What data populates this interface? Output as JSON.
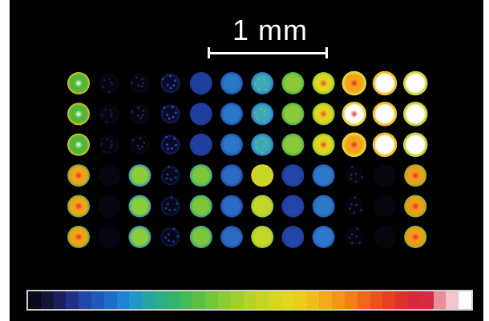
{
  "scale": {
    "label": "1 mm"
  },
  "colors": {
    "background": "#000000",
    "scale_bar": "#ffffff",
    "colorbar_frame": "#cfcfcf"
  },
  "colormap": [
    "#0a0a18",
    "#14143a",
    "#1c1f5e",
    "#23308a",
    "#2245a8",
    "#2058bb",
    "#1f6dc9",
    "#1d83d2",
    "#1f98c8",
    "#25a6a4",
    "#2cae86",
    "#35b46c",
    "#45ba55",
    "#5bc046",
    "#72c63a",
    "#8acb33",
    "#a0cf2d",
    "#b5d229",
    "#c6d525",
    "#d6d621",
    "#e4d51d",
    "#eccc1b",
    "#f0bd1a",
    "#f2aa19",
    "#f39518",
    "#f27f18",
    "#ef6819",
    "#eb531c",
    "#e63f22",
    "#e0302c",
    "#d82938",
    "#d62a45",
    "#e8909a",
    "#f2c6cb",
    "#ffffff"
  ],
  "wells": {
    "rows": 6,
    "cols": 12,
    "grid": [
      [
        {
          "c": "#4fb83a",
          "r": "#f0c020",
          "h": "#ffffff"
        },
        {
          "c": "#050510",
          "r": "#0b0b1c",
          "speck": "#1a1a4a",
          "faint": true
        },
        {
          "c": "#050510",
          "r": "#0b0b1c",
          "speck": "#23236a",
          "faint": true
        },
        {
          "c": "#0d0f3a",
          "r": "#1f2a7a",
          "speck": "#2f4cb0",
          "faint": true
        },
        {
          "c": "#1e3fa0",
          "r": "#213a96"
        },
        {
          "c": "#2a77c8",
          "r": "#1f4fb0"
        },
        {
          "c": "#3aa6c0",
          "r": "#2a78c9",
          "speck": "#6ac048"
        },
        {
          "c": "#8cc93a",
          "r": "#4cb14a"
        },
        {
          "c": "#e0d520",
          "r": "#7ac638",
          "h": "#e84a20"
        },
        {
          "c": "#f4a41a",
          "r": "#e7d23a",
          "h": "#e02a28",
          "hot": true
        },
        {
          "c": "#ffffff",
          "r": "#f2c020",
          "h": "#ffffff",
          "hot": true
        },
        {
          "c": "#ffffff",
          "r": "#cdd23a",
          "h": "#ffffff",
          "hot": true
        }
      ],
      [
        {
          "c": "#4fb83a",
          "r": "#f0c020",
          "h": "#ffffff"
        },
        {
          "c": "#050510",
          "r": "#0b0b1c",
          "speck": "#1a1a4a",
          "faint": true
        },
        {
          "c": "#050510",
          "r": "#0b0b1c",
          "speck": "#23236a",
          "faint": true
        },
        {
          "c": "#0d0f3a",
          "r": "#1f2a7a",
          "speck": "#2f4cb0",
          "faint": true
        },
        {
          "c": "#1e3fa0",
          "r": "#213a96"
        },
        {
          "c": "#2a77c8",
          "r": "#1f4fb0"
        },
        {
          "c": "#3aa6c0",
          "r": "#2a78c9",
          "speck": "#6ac048"
        },
        {
          "c": "#8cc93a",
          "r": "#4cb14a"
        },
        {
          "c": "#e0d520",
          "r": "#7ac638",
          "h": "#e84a20"
        },
        {
          "c": "#ffffff",
          "r": "#e7d23a",
          "h": "#e02a28",
          "hot": true
        },
        {
          "c": "#ffffff",
          "r": "#f2c020",
          "h": "#ffffff",
          "hot": true
        },
        {
          "c": "#ffffff",
          "r": "#cdd23a",
          "h": "#ffffff",
          "hot": true
        }
      ],
      [
        {
          "c": "#4fb83a",
          "r": "#f0c020",
          "h": "#ffffff"
        },
        {
          "c": "#050510",
          "r": "#0b0b1c",
          "speck": "#1a1a4a",
          "faint": true
        },
        {
          "c": "#050510",
          "r": "#0b0b1c",
          "speck": "#23236a",
          "faint": true
        },
        {
          "c": "#0d0f3a",
          "r": "#1f2a7a",
          "speck": "#2f4cb0",
          "faint": true
        },
        {
          "c": "#1e3fa0",
          "r": "#213a96"
        },
        {
          "c": "#2a77c8",
          "r": "#1f4fb0"
        },
        {
          "c": "#3aa6c0",
          "r": "#2a78c9",
          "speck": "#6ac048"
        },
        {
          "c": "#8cc93a",
          "r": "#4cb14a"
        },
        {
          "c": "#e0d520",
          "r": "#7ac638",
          "h": "#e84a20"
        },
        {
          "c": "#f4a41a",
          "r": "#e7d23a",
          "h": "#e02a28",
          "hot": true
        },
        {
          "c": "#ffffff",
          "r": "#f2c020",
          "h": "#ffffff",
          "hot": true
        },
        {
          "c": "#ffffff",
          "r": "#cdd23a",
          "h": "#ffffff",
          "hot": true
        }
      ],
      [
        {
          "c": "#f2a21a",
          "r": "#4cb14a",
          "h": "#e0302a"
        },
        {
          "c": "#050510",
          "r": "#050510"
        },
        {
          "c": "#8ccc3a",
          "r": "#2f8fc4"
        },
        {
          "c": "#0b0b22",
          "r": "#1a1f5e",
          "speck": "#2a3a9a",
          "faint": true
        },
        {
          "c": "#7cc63a",
          "r": "#3aa38e"
        },
        {
          "c": "#2a6cc4",
          "r": "#1f4aa8"
        },
        {
          "c": "#c6d52a",
          "r": "#e8cc24",
          "h": "#c6d52a"
        },
        {
          "c": "#2345a8",
          "r": "#1f3c9a"
        },
        {
          "c": "#2d78c9",
          "r": "#2759b8"
        },
        {
          "c": "#050510",
          "r": "#050510",
          "speck": "#20256a",
          "faint": true
        },
        {
          "c": "#050510",
          "r": "#050510"
        },
        {
          "c": "#f29a1a",
          "r": "#6cc23e",
          "h": "#e0302a"
        }
      ],
      [
        {
          "c": "#f2a21a",
          "r": "#4cb14a",
          "h": "#e0302a"
        },
        {
          "c": "#050510",
          "r": "#050510"
        },
        {
          "c": "#8ccc3a",
          "r": "#2f8fc4"
        },
        {
          "c": "#0b0b22",
          "r": "#1a1f5e",
          "speck": "#2a3a9a",
          "faint": true
        },
        {
          "c": "#7cc63a",
          "r": "#3aa38e"
        },
        {
          "c": "#2a6cc4",
          "r": "#1f4aa8"
        },
        {
          "c": "#c6d52a",
          "r": "#8cc93a",
          "h": "#c6d52a"
        },
        {
          "c": "#2345a8",
          "r": "#1f3c9a"
        },
        {
          "c": "#2d78c9",
          "r": "#2759b8"
        },
        {
          "c": "#050510",
          "r": "#050510",
          "speck": "#20256a",
          "faint": true
        },
        {
          "c": "#050510",
          "r": "#050510"
        },
        {
          "c": "#f29a1a",
          "r": "#6cc23e",
          "h": "#e0302a"
        }
      ],
      [
        {
          "c": "#f2a21a",
          "r": "#4cb14a",
          "h": "#e0302a"
        },
        {
          "c": "#050510",
          "r": "#050510"
        },
        {
          "c": "#8ccc3a",
          "r": "#2f8fc4"
        },
        {
          "c": "#0b0b22",
          "r": "#1a1f5e",
          "speck": "#2a3a9a",
          "faint": true
        },
        {
          "c": "#7cc63a",
          "r": "#3aa38e"
        },
        {
          "c": "#2a6cc4",
          "r": "#1f4aa8"
        },
        {
          "c": "#c6d52a",
          "r": "#8cc93a",
          "h": "#c6d52a"
        },
        {
          "c": "#2345a8",
          "r": "#1f3c9a"
        },
        {
          "c": "#2d78c9",
          "r": "#2759b8"
        },
        {
          "c": "#050510",
          "r": "#050510",
          "speck": "#20256a",
          "faint": true
        },
        {
          "c": "#050510",
          "r": "#050510"
        },
        {
          "c": "#f29a1a",
          "r": "#6cc23e",
          "h": "#e0302a"
        }
      ]
    ]
  }
}
